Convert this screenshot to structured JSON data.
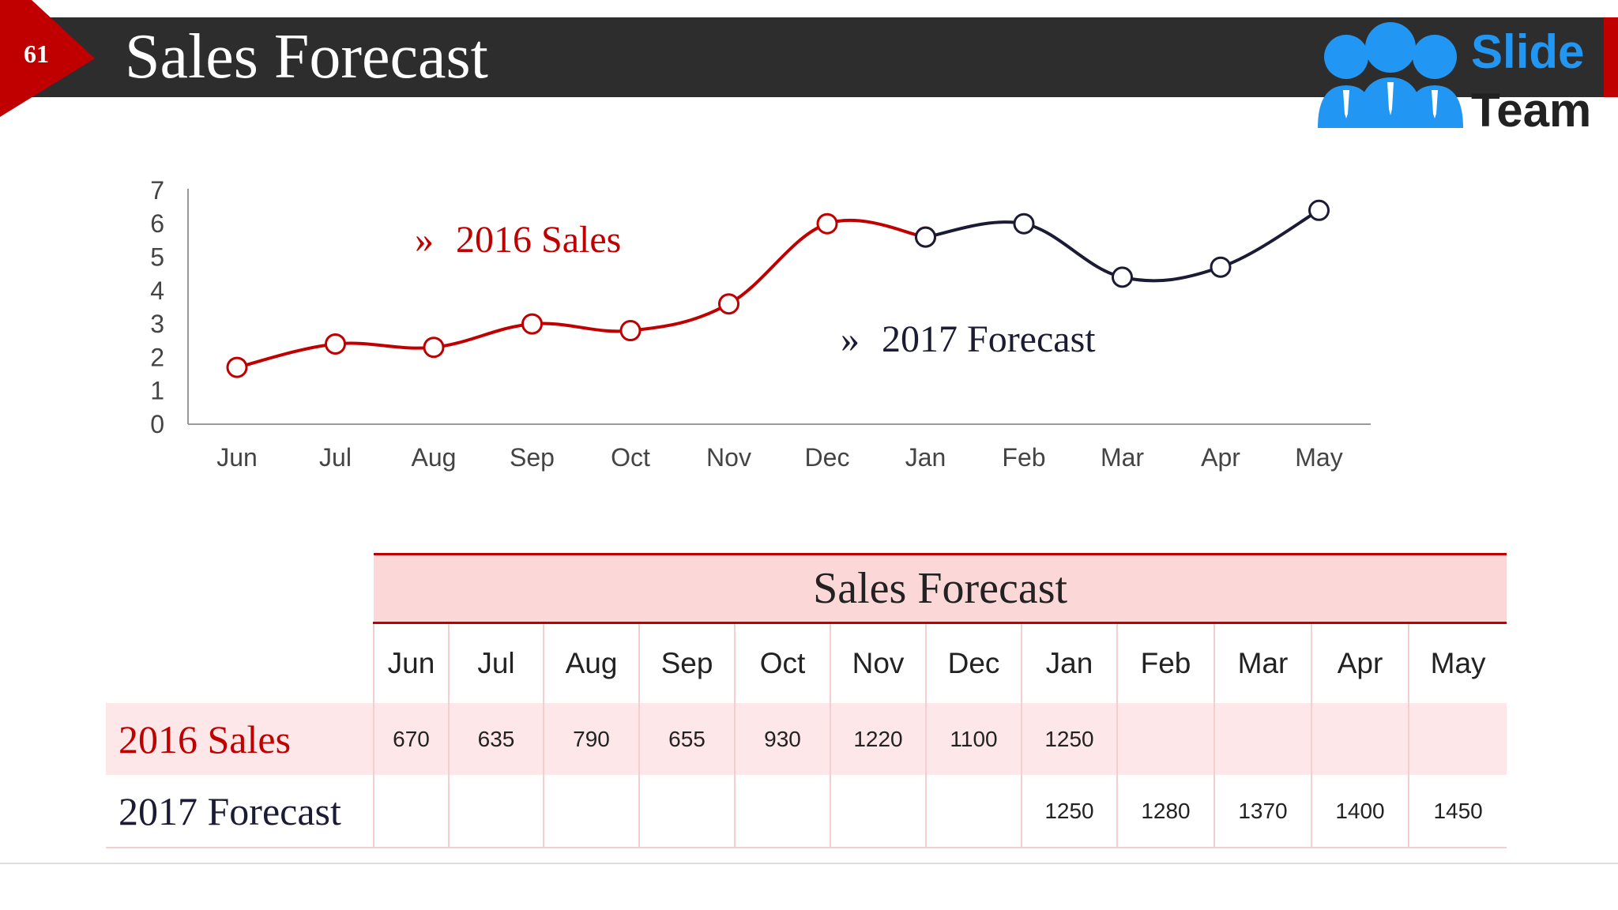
{
  "slide": {
    "number": "61",
    "title": "Sales Forecast"
  },
  "logo": {
    "line1": "Slide",
    "line2": "Team",
    "colors": {
      "blue": "#2196f3",
      "dark": "#222222"
    }
  },
  "chart_data": {
    "type": "line",
    "categories": [
      "Jun",
      "Jul",
      "Aug",
      "Sep",
      "Oct",
      "Nov",
      "Dec",
      "Jan",
      "Feb",
      "Mar",
      "Apr",
      "May"
    ],
    "ylim": [
      0,
      7
    ],
    "yticks": [
      "0",
      "1",
      "2",
      "3",
      "4",
      "5",
      "6",
      "7"
    ],
    "series": [
      {
        "name": "2016 Sales",
        "color": "#c00000",
        "values": [
          1.7,
          2.4,
          2.3,
          3.0,
          2.8,
          3.6,
          6.0,
          5.6,
          null,
          null,
          null,
          null
        ]
      },
      {
        "name": "2017 Forecast",
        "color": "#1b1b33",
        "values": [
          null,
          null,
          null,
          null,
          null,
          null,
          null,
          5.6,
          6.0,
          4.4,
          4.7,
          6.4
        ]
      }
    ],
    "legend_placement": "inline",
    "grid": false
  },
  "table": {
    "title": "Sales Forecast",
    "months": [
      "Jun",
      "Jul",
      "Aug",
      "Sep",
      "Oct",
      "Nov",
      "Dec",
      "Jan",
      "Feb",
      "Mar",
      "Apr",
      "May"
    ],
    "rows": [
      {
        "label": "2016 Sales",
        "color": "#c00000",
        "values": [
          "670",
          "635",
          "790",
          "655",
          "930",
          "1220",
          "1100",
          "1250",
          "",
          "",
          "",
          ""
        ]
      },
      {
        "label": "2017 Forecast",
        "color": "#1b1b33",
        "values": [
          "",
          "",
          "",
          "",
          "",
          "",
          "",
          "1250",
          "1280",
          "1370",
          "1400",
          "1450"
        ]
      }
    ]
  }
}
